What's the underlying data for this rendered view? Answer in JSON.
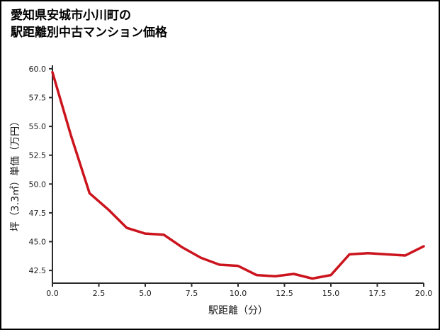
{
  "title": {
    "line1": "愛知県安城市小川町の",
    "line2": "駅距離別中古マンション価格"
  },
  "chart_data": {
    "type": "line",
    "title": "愛知県安城市小川町の駅距離別中古マンション価格",
    "xlabel": "駅距離（分）",
    "ylabel": "坪（3.3㎡）単価（万円）",
    "x": [
      0,
      1,
      2,
      3,
      4,
      5,
      6,
      7,
      8,
      9,
      10,
      11,
      12,
      13,
      14,
      15,
      16,
      17,
      18,
      19,
      20
    ],
    "values": [
      59.7,
      54.2,
      49.2,
      47.8,
      46.2,
      45.7,
      45.6,
      44.5,
      43.6,
      43.0,
      42.9,
      42.1,
      42.0,
      42.2,
      41.8,
      42.1,
      43.9,
      44.0,
      43.9,
      43.8,
      44.6
    ],
    "xlim": [
      0,
      20
    ],
    "ylim": [
      41.4,
      60.3
    ],
    "x_ticks": [
      0.0,
      2.5,
      5.0,
      7.5,
      10.0,
      12.5,
      15.0,
      17.5,
      20.0
    ],
    "y_ticks": [
      42.5,
      45.0,
      47.5,
      50.0,
      52.5,
      55.0,
      57.5,
      60.0
    ],
    "grid": false,
    "legend": "none",
    "line_color": "#cb141d",
    "axis_color": "#2a2a2a",
    "tick_label_color": "#1a1a1a"
  }
}
